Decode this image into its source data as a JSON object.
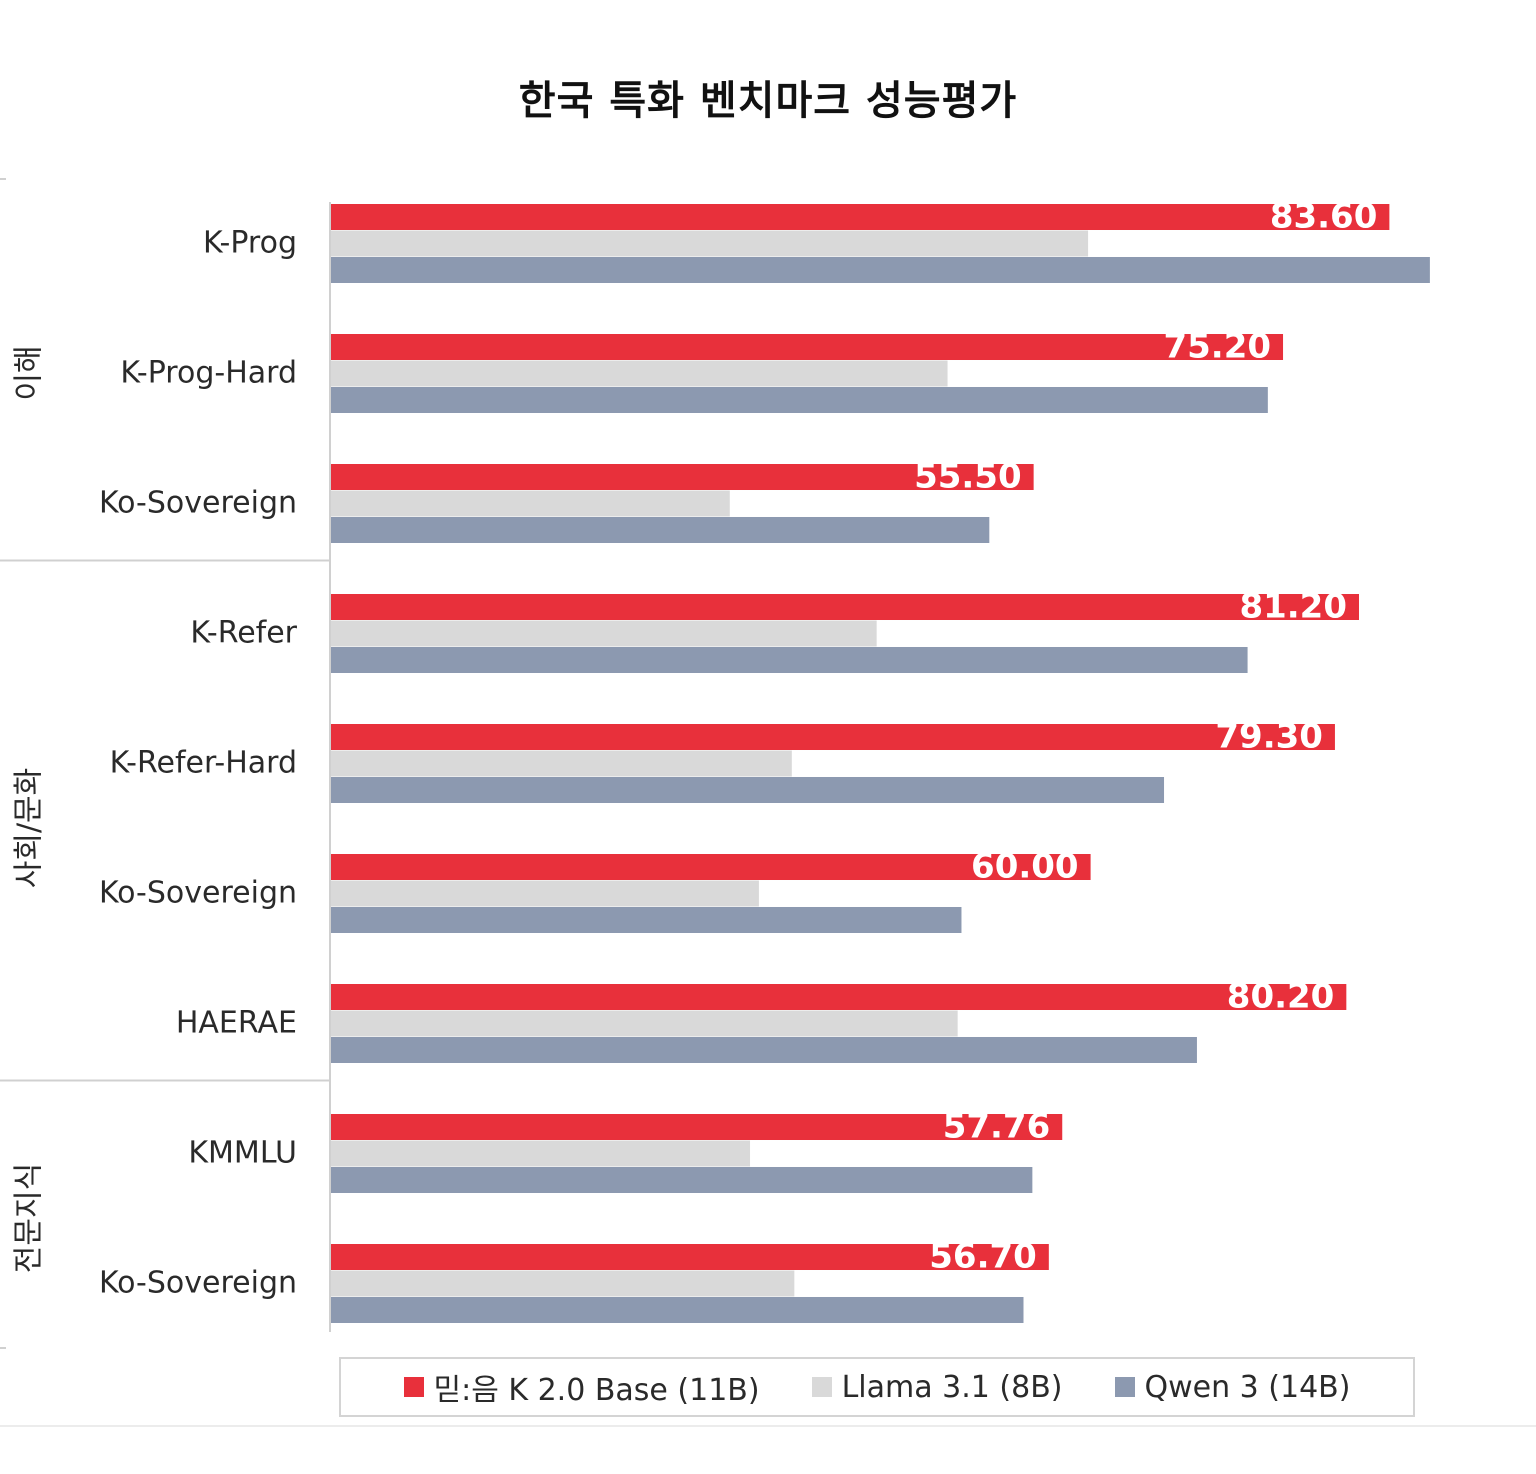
{
  "colors": {
    "series_red": "#e8303b",
    "series_lightgray": "#d9d9d9",
    "series_slate": "#8c99b0",
    "axis_line": "#d0d0d0",
    "label_text": "#2a2a2a",
    "value_label_text": "#ffffff"
  },
  "chart_data": {
    "type": "bar",
    "orientation": "horizontal",
    "title": "한국 특화 벤치마크 성능평가",
    "categories": [
      "K-Prog",
      "K-Prog-Hard",
      "Ko-Sovereign",
      "K-Refer",
      "K-Refer-Hard",
      "Ko-Sovereign",
      "HAERAE",
      "KMMLU",
      "Ko-Sovereign"
    ],
    "groups": [
      {
        "label": "이해",
        "count": 3
      },
      {
        "label": "사회/문화",
        "count": 4
      },
      {
        "label": "전문지식",
        "count": 2
      }
    ],
    "series": [
      {
        "name": "믿:음 K 2.0 Base (11B)",
        "color": "#e8303b",
        "values": [
          83.6,
          75.2,
          55.5,
          81.2,
          79.3,
          60.0,
          80.2,
          57.76,
          56.7
        ],
        "labels": [
          "83.60",
          "75.20",
          "55.50",
          "81.20",
          "79.30",
          "60.00",
          "80.20",
          "57.76",
          "56.70"
        ]
      },
      {
        "name": "Llama 3.1 (8B)",
        "color": "#d9d9d9",
        "values": [
          59.8,
          48.7,
          31.5,
          43.1,
          36.4,
          33.8,
          49.5,
          33.1,
          36.6
        ]
      },
      {
        "name": "Qwen 3 (14B)",
        "color": "#8c99b0",
        "values": [
          86.8,
          74.0,
          52.0,
          72.4,
          65.8,
          49.8,
          68.4,
          55.4,
          54.7
        ]
      }
    ],
    "xlim": [
      0,
      100
    ],
    "grid": false,
    "legend_position": "bottom"
  }
}
